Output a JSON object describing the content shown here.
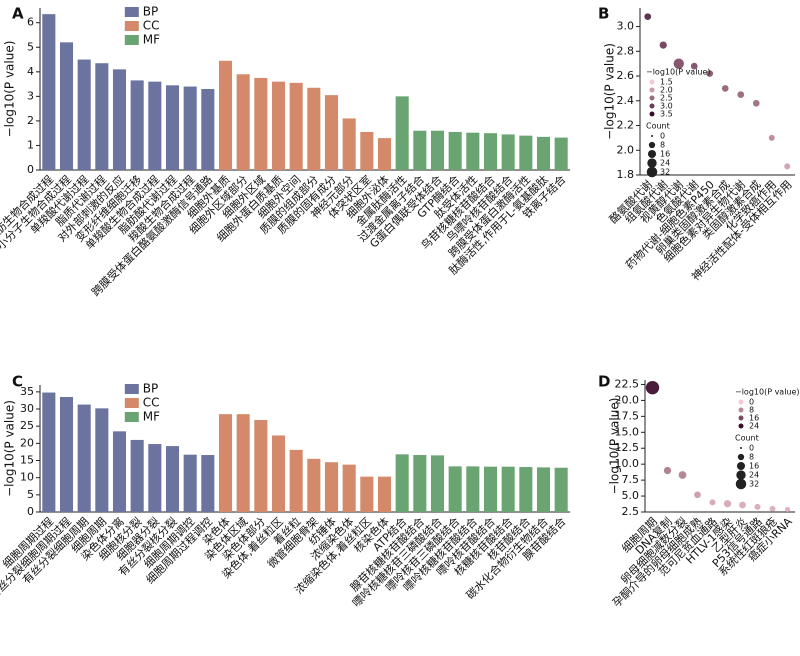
{
  "chart_data": [
    {
      "type": "bar",
      "panel": "A",
      "ylabel": "−log10(P value)",
      "categories": [
        "脂肪生物合成过程",
        "小分子生物合成过程",
        "单羧酸代谢过程",
        "脂质代谢过程",
        "对外部刺激的反应",
        "变形纤维细胞迁移",
        "单羧酸生物合成过程",
        "脂肪酸代谢过程",
        "羧酸生物合成过程",
        "跨膜受体蛋白酪氨酸激酶信号通路",
        "细胞外基质",
        "细胞外区域部分",
        "细胞外区域",
        "细胞外蛋白质基质",
        "细胞外空间",
        "质膜的组成部分",
        "质膜的固有成分",
        "神经元部分",
        "体突状区室",
        "细胞外泌体",
        "金属肽酶活性",
        "过渡金属离子结合",
        "G蛋白偶联受体结合",
        "GTP酶结合",
        "肽受体活性",
        "鸟苷核糖核苷酸结合",
        "鸟嘌呤核苷酸结合",
        "跨膜受体蛋白激酶活性",
        "肽酶活性,作用于L-氨基酸肽",
        "铁离子结合"
      ],
      "series": [
        {
          "name": "BP",
          "color": "#6b739f",
          "values": [
            6.35,
            5.2,
            4.5,
            4.35,
            4.1,
            3.65,
            3.6,
            3.45,
            3.4,
            3.3,
            null,
            null,
            null,
            null,
            null,
            null,
            null,
            null,
            null,
            null,
            null,
            null,
            null,
            null,
            null,
            null,
            null,
            null,
            null,
            null
          ]
        },
        {
          "name": "CC",
          "color": "#d3896a",
          "values": [
            null,
            null,
            null,
            null,
            null,
            null,
            null,
            null,
            null,
            null,
            4.45,
            3.9,
            3.75,
            3.6,
            3.55,
            3.35,
            3.05,
            2.1,
            1.55,
            1.3,
            null,
            null,
            null,
            null,
            null,
            null,
            null,
            null,
            null,
            null
          ]
        },
        {
          "name": "MF",
          "color": "#6ba473",
          "values": [
            null,
            null,
            null,
            null,
            null,
            null,
            null,
            null,
            null,
            null,
            null,
            null,
            null,
            null,
            null,
            null,
            null,
            null,
            null,
            null,
            3.0,
            1.6,
            1.6,
            1.55,
            1.52,
            1.5,
            1.45,
            1.4,
            1.35,
            1.32
          ]
        }
      ],
      "ylim": [
        0,
        6.6
      ],
      "yticks": [
        0,
        1,
        2,
        3,
        4,
        5,
        6
      ],
      "legend": "upper left"
    },
    {
      "type": "scatter",
      "panel": "B",
      "ylabel": "−log10(P value)",
      "categories": [
        "酪氨酸代谢",
        "组氨酸代谢",
        "视黄醇代谢",
        "色氨酸代谢",
        "药物代谢-细胞色素P450",
        "卵巢类固醇激素合成",
        "细胞色素对异生物代谢",
        "类固醇激素合成",
        "化学致癌作用",
        "神经活性配体-受体相互作用"
      ],
      "values": [
        3.08,
        2.85,
        2.7,
        2.68,
        2.62,
        2.5,
        2.45,
        2.38,
        2.1,
        1.87
      ],
      "sizes": [
        3,
        4,
        12,
        3,
        3,
        3,
        3,
        3,
        2,
        2
      ],
      "ylim": [
        1.8,
        3.15
      ],
      "yticks": [
        {
          "value": 1.8,
          "label": "1.8"
        },
        {
          "value": 2.0,
          "label": "2.0"
        },
        {
          "value": 2.2,
          "label": "2.2"
        },
        {
          "value": 2.4,
          "label": "2.4"
        },
        {
          "value": 2.6,
          "label": "2.6"
        },
        {
          "value": 2.8,
          "label": "2.8"
        },
        {
          "value": 3.0,
          "label": "3.0"
        }
      ],
      "color_low": "#f6c9d2",
      "color_high": "#3a0c2c",
      "clim": [
        1.5,
        3.5
      ],
      "color_legend_title": "−log10(P value)",
      "color_legend_ticks": [
        1.5,
        {
          "value": 2.0,
          "label": "2.0"
        },
        2.5,
        {
          "value": 3.0,
          "label": "3.0"
        },
        3.5
      ],
      "size_legend_title": "Count",
      "size_legend_ticks": [
        0,
        8,
        16,
        24,
        32
      ],
      "size_max": 32,
      "legend": "center left"
    },
    {
      "type": "bar",
      "panel": "C",
      "ylabel": "−log10(P value)",
      "categories": [
        "细胞周期过程",
        "有丝分裂细胞周期过程",
        "有丝分裂细胞周期",
        "细胞周期",
        "染色体分离",
        "细胞核分裂",
        "细胞器分裂",
        "有丝分裂核分裂",
        "细胞周期调控",
        "细胞周期过程调控",
        "染色体",
        "染色体区域",
        "染色体部分",
        "染色体,着丝粒区",
        "着丝粒",
        "微管细胞骨架",
        "纺锤体",
        "浓缩染色体",
        "浓缩染色体,着丝粒区",
        "核染色体",
        "ATP结合",
        "腺苷核糖核苷酸结合",
        "嘌呤核糖核苷三磷酸结合",
        "嘌呤核苷三磷酸结合",
        "嘌呤核糖核苷酸结合",
        "嘌呤核苷酸结合",
        "核糖核苷酸结合",
        "核苷酸结合",
        "碳水化合物衍生物结合",
        "腺苷酸结合"
      ],
      "series": [
        {
          "name": "BP",
          "color": "#6b739f",
          "values": [
            34.8,
            33.5,
            31.3,
            30.2,
            23.5,
            21.0,
            19.8,
            19.2,
            16.7,
            16.6,
            null,
            null,
            null,
            null,
            null,
            null,
            null,
            null,
            null,
            null,
            null,
            null,
            null,
            null,
            null,
            null,
            null,
            null,
            null,
            null
          ]
        },
        {
          "name": "CC",
          "color": "#d3896a",
          "values": [
            null,
            null,
            null,
            null,
            null,
            null,
            null,
            null,
            null,
            null,
            28.5,
            28.5,
            26.8,
            22.3,
            18.1,
            15.5,
            14.5,
            13.8,
            10.3,
            10.3,
            null,
            null,
            null,
            null,
            null,
            null,
            null,
            null,
            null,
            null
          ]
        },
        {
          "name": "MF",
          "color": "#6ba473",
          "values": [
            null,
            null,
            null,
            null,
            null,
            null,
            null,
            null,
            null,
            null,
            null,
            null,
            null,
            null,
            null,
            null,
            null,
            null,
            null,
            null,
            16.8,
            16.6,
            16.5,
            13.3,
            13.3,
            13.2,
            13.2,
            13.1,
            13.0,
            12.9
          ]
        }
      ],
      "ylim": [
        0,
        37
      ],
      "yticks": [
        0,
        5,
        10,
        15,
        20,
        25,
        30,
        35
      ],
      "legend": "upper left"
    },
    {
      "type": "scatter",
      "panel": "D",
      "ylabel": "−log10(P value)",
      "categories": [
        "细胞周期",
        "DNA复制",
        "卵母细胞减数分裂",
        "孕酮介导的卵母细胞成熟",
        "范可尼贫血通路",
        "HTLV-1感染",
        "乙型肝炎",
        "P53信号通路",
        "系统性红斑狼疮",
        "癌症小RNA"
      ],
      "values": [
        22.0,
        9.0,
        8.3,
        5.2,
        4.0,
        3.8,
        3.6,
        3.3,
        3.0,
        2.9
      ],
      "sizes": [
        24,
        4,
        5,
        3,
        2,
        4,
        3,
        2,
        2,
        1
      ],
      "ylim": [
        2.5,
        23.2
      ],
      "yticks": [
        2.5,
        {
          "value": 5,
          "label": "5.0"
        },
        7.5,
        {
          "value": 10,
          "label": "10.0"
        },
        12.5,
        {
          "value": 15,
          "label": "15.0"
        },
        17.5,
        {
          "value": 20,
          "label": "20.0"
        },
        22.5
      ],
      "color_low": "#f6c9d2",
      "color_high": "#3a0c2c",
      "clim": [
        0,
        24
      ],
      "color_legend_title": "−log10(P value)",
      "color_legend_ticks": [
        0,
        8,
        16,
        24
      ],
      "size_legend_title": "Count",
      "size_legend_ticks": [
        0,
        8,
        16,
        24,
        32
      ],
      "size_max": 32,
      "legend": "upper right"
    }
  ]
}
